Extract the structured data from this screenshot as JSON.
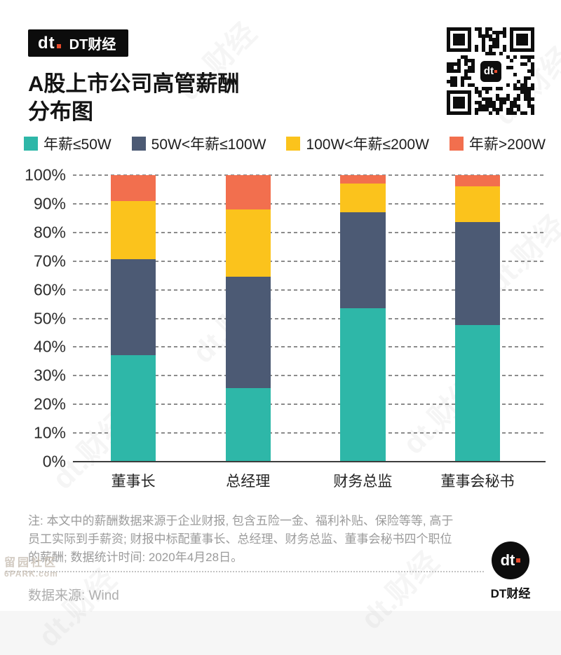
{
  "header": {
    "brand": "DT财经",
    "logo_text": "dt"
  },
  "title": {
    "line1": "A股上市公司高管薪酬",
    "line2": "分布图"
  },
  "chart_data": {
    "type": "bar",
    "stacked": true,
    "title": "A股上市公司高管薪酬分布图",
    "categories": [
      "董事长",
      "总经理",
      "财务总监",
      "董事会秘书"
    ],
    "series": [
      {
        "name": "年薪≤50W",
        "color": "#2EB7A8",
        "values": [
          37,
          25.5,
          53.5,
          47.5
        ]
      },
      {
        "name": "50W<年薪≤100W",
        "color": "#4C5A74",
        "values": [
          33.5,
          39,
          33.5,
          36
        ]
      },
      {
        "name": "100W<年薪≤200W",
        "color": "#FBC31C",
        "values": [
          20.5,
          23.5,
          10,
          12.5
        ]
      },
      {
        "name": "年薪>200W",
        "color": "#F26F4E",
        "values": [
          9,
          12,
          3,
          4
        ]
      }
    ],
    "yticks": [
      "100%",
      "90%",
      "80%",
      "70%",
      "60%",
      "50%",
      "40%",
      "30%",
      "20%",
      "10%",
      "0%"
    ],
    "ylim": [
      0,
      100
    ],
    "ylabel": "",
    "xlabel": "",
    "grid": "dashed-horizontal",
    "legend_position": "top"
  },
  "note": {
    "lines": [
      "注: 本文中的薪酬数据来源于企业财报, 包含五险一金、福利补贴、保险等等, 高于",
      "员工实际到手薪资; 财报中标配董事长、总经理、财务总监、董事会秘书四个职位",
      "的薪酬; 数据统计时间: 2020年4月28日。"
    ]
  },
  "footer": {
    "source": "数据来源: Wind",
    "brand": "DT财经",
    "logo_text": "dt"
  },
  "watermark": {
    "text": "dt.财经",
    "site_line1": "留园社区",
    "site_line2": "6PARK.com"
  }
}
